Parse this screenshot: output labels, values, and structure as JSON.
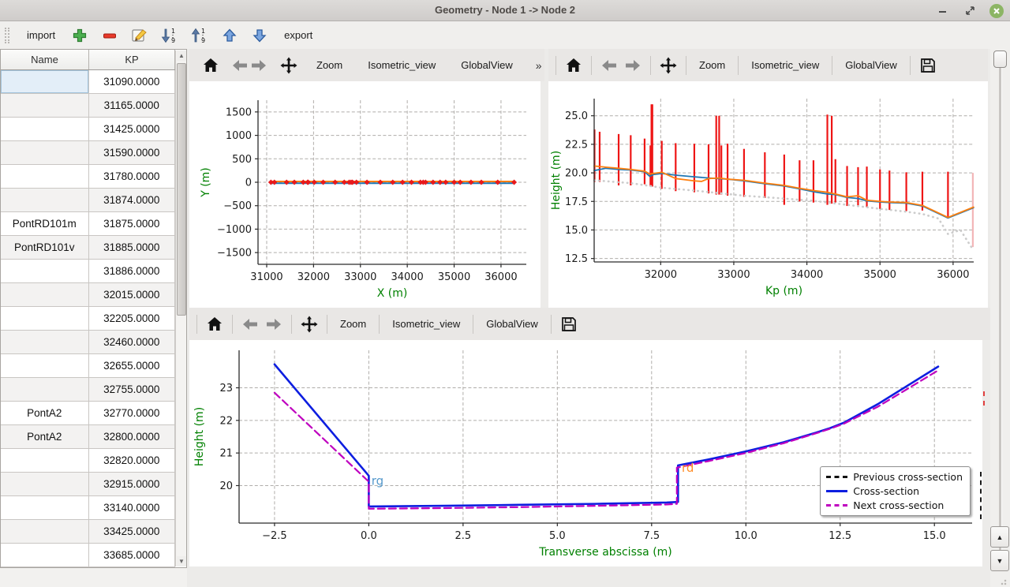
{
  "window": {
    "title": "Geometry - Node 1 -> Node 2"
  },
  "main_toolbar": {
    "import_label": "import",
    "export_label": "export",
    "icons": [
      "add",
      "remove",
      "edit",
      "sort-descending",
      "sort-ascending",
      "move-up",
      "move-down"
    ]
  },
  "plot_toolbar": {
    "zoom_label": "Zoom",
    "isometric_label": "Isometric_view",
    "globalview_label": "GlobalView",
    "overflow_label": "»",
    "icons": [
      "home",
      "back",
      "forward",
      "pan",
      "save"
    ]
  },
  "table": {
    "columns": [
      "Name",
      "KP"
    ],
    "selected": {
      "row": 0,
      "col": 0
    },
    "rows": [
      {
        "name": "",
        "kp": "31090.0000"
      },
      {
        "name": "",
        "kp": "31165.0000"
      },
      {
        "name": "",
        "kp": "31425.0000"
      },
      {
        "name": "",
        "kp": "31590.0000"
      },
      {
        "name": "",
        "kp": "31780.0000"
      },
      {
        "name": "",
        "kp": "31874.0000"
      },
      {
        "name": "PontRD101m",
        "kp": "31875.0000"
      },
      {
        "name": "PontRD101v",
        "kp": "31885.0000"
      },
      {
        "name": "",
        "kp": "31886.0000"
      },
      {
        "name": "",
        "kp": "32015.0000"
      },
      {
        "name": "",
        "kp": "32205.0000"
      },
      {
        "name": "",
        "kp": "32460.0000"
      },
      {
        "name": "",
        "kp": "32655.0000"
      },
      {
        "name": "",
        "kp": "32755.0000"
      },
      {
        "name": "PontA2",
        "kp": "32770.0000"
      },
      {
        "name": "PontA2",
        "kp": "32800.0000"
      },
      {
        "name": "",
        "kp": "32820.0000"
      },
      {
        "name": "",
        "kp": "32915.0000"
      },
      {
        "name": "",
        "kp": "33140.0000"
      },
      {
        "name": "",
        "kp": "33425.0000"
      },
      {
        "name": "",
        "kp": "33685.0000"
      }
    ]
  },
  "chart_data": [
    {
      "type": "line",
      "title": "",
      "xlabel": "X (m)",
      "ylabel": "Y (m)",
      "xlim": [
        30815,
        36540
      ],
      "ylim": [
        -1750,
        1750
      ],
      "grid": true,
      "xticks": {
        "values": [
          31000,
          32000,
          33000,
          34000,
          35000,
          36000
        ],
        "labels": [
          "31000",
          "32000",
          "33000",
          "34000",
          "35000",
          "36000"
        ]
      },
      "yticks": {
        "values": [
          1500,
          1000,
          500,
          0,
          -500,
          -1000,
          -1500
        ],
        "labels": [
          "1500",
          "1000",
          "500",
          "0",
          "−500",
          "−1000",
          "−1500"
        ]
      },
      "series": [
        {
          "name": "axis-line-blue",
          "color": "#1f77b4",
          "width": 2,
          "dash": "",
          "points": [
            [
              31090,
              -22
            ],
            [
              36290,
              -22
            ]
          ]
        },
        {
          "name": "axis-line-orange",
          "color": "#ff7f0e",
          "width": 2,
          "dash": "",
          "points": [
            [
              31090,
              16
            ],
            [
              36290,
              16
            ]
          ]
        }
      ],
      "markers": {
        "color": "#e8191c",
        "size": 3.5,
        "y": 0,
        "x": [
          31090,
          31165,
          31425,
          31590,
          31780,
          31874,
          31885,
          32015,
          32205,
          32460,
          32655,
          32760,
          32800,
          32830,
          32915,
          33140,
          33425,
          33690,
          33900,
          34090,
          34280,
          34340,
          34390,
          34550,
          34700,
          34820,
          35000,
          35130,
          35360,
          35580,
          35930,
          36280
        ]
      }
    },
    {
      "type": "line",
      "title": "",
      "xlabel": "Kp (m)",
      "ylabel": "Height (m)",
      "xlim": [
        31090,
        36282
      ],
      "ylim": [
        12.2,
        26.5
      ],
      "grid": true,
      "xticks": {
        "values": [
          32000,
          33000,
          34000,
          35000,
          36000
        ],
        "labels": [
          "32000",
          "33000",
          "34000",
          "35000",
          "36000"
        ]
      },
      "yticks": {
        "values": [
          12.5,
          15.0,
          17.5,
          20.0,
          22.5,
          25.0
        ],
        "labels": [
          "12.5",
          "15.0",
          "17.5",
          "20.0",
          "22.5",
          "25.0"
        ]
      },
      "vlines": [
        {
          "x": 31095,
          "y0": 19.2,
          "y1": 23.8
        },
        {
          "x": 31165,
          "y0": 19.2,
          "y1": 23.6
        },
        {
          "x": 31425,
          "y0": 18.9,
          "y1": 23.4
        },
        {
          "x": 31590,
          "y0": 18.9,
          "y1": 23.3
        },
        {
          "x": 31780,
          "y0": 19.0,
          "y1": 23.0
        },
        {
          "x": 31860,
          "y0": 18.8,
          "y1": 22.4
        },
        {
          "x": 31874,
          "y0": 18.8,
          "y1": 26.0
        },
        {
          "x": 31886,
          "y0": 18.8,
          "y1": 26.0
        },
        {
          "x": 32015,
          "y0": 18.6,
          "y1": 22.8
        },
        {
          "x": 32205,
          "y0": 18.4,
          "y1": 22.6
        },
        {
          "x": 32460,
          "y0": 18.3,
          "y1": 22.55
        },
        {
          "x": 32655,
          "y0": 18.2,
          "y1": 22.5
        },
        {
          "x": 32760,
          "y0": 18.1,
          "y1": 25.0
        },
        {
          "x": 32800,
          "y0": 18.1,
          "y1": 25.0
        },
        {
          "x": 32830,
          "y0": 18.1,
          "y1": 22.4
        },
        {
          "x": 32915,
          "y0": 18.0,
          "y1": 22.55
        },
        {
          "x": 33140,
          "y0": 17.9,
          "y1": 22.1
        },
        {
          "x": 33425,
          "y0": 17.8,
          "y1": 21.8
        },
        {
          "x": 33690,
          "y0": 17.2,
          "y1": 21.6
        },
        {
          "x": 33900,
          "y0": 17.5,
          "y1": 21.1
        },
        {
          "x": 34090,
          "y0": 17.4,
          "y1": 21.1
        },
        {
          "x": 34280,
          "y0": 17.2,
          "y1": 25.1
        },
        {
          "x": 34340,
          "y0": 17.3,
          "y1": 25.0
        },
        {
          "x": 34390,
          "y0": 17.4,
          "y1": 21.2
        },
        {
          "x": 34550,
          "y0": 17.1,
          "y1": 20.6
        },
        {
          "x": 34700,
          "y0": 17.15,
          "y1": 20.5
        },
        {
          "x": 34820,
          "y0": 17.0,
          "y1": 20.55
        },
        {
          "x": 35000,
          "y0": 16.85,
          "y1": 20.3
        },
        {
          "x": 35130,
          "y0": 16.75,
          "y1": 20.2
        },
        {
          "x": 35360,
          "y0": 16.65,
          "y1": 20.05
        },
        {
          "x": 35580,
          "y0": 16.7,
          "y1": 20.1
        },
        {
          "x": 35930,
          "y0": 16.0,
          "y1": 20.1
        },
        {
          "x": 36270,
          "y0": 13.5,
          "y1": 20.0,
          "color": "#f3b6b8"
        }
      ],
      "series": [
        {
          "name": "left-bank-line",
          "color": "#1f77b4",
          "width": 1.8,
          "dash": "",
          "points": [
            [
              31090,
              20.2
            ],
            [
              31250,
              20.4
            ],
            [
              31425,
              20.3
            ],
            [
              31590,
              20.25
            ],
            [
              31780,
              20.1
            ],
            [
              31850,
              19.7
            ],
            [
              31900,
              19.85
            ],
            [
              32015,
              19.95
            ],
            [
              32205,
              19.8
            ],
            [
              32460,
              19.65
            ],
            [
              32655,
              19.55
            ],
            [
              32800,
              19.5
            ],
            [
              32915,
              19.45
            ],
            [
              33140,
              19.3
            ],
            [
              33425,
              19.05
            ],
            [
              33690,
              18.85
            ],
            [
              33900,
              18.6
            ],
            [
              34090,
              18.35
            ],
            [
              34280,
              18.15
            ],
            [
              34390,
              18.1
            ],
            [
              34550,
              17.85
            ],
            [
              34700,
              17.75
            ],
            [
              34820,
              17.55
            ],
            [
              35000,
              17.45
            ],
            [
              35130,
              17.4
            ],
            [
              35360,
              17.35
            ],
            [
              35580,
              17.1
            ],
            [
              35930,
              16.05
            ],
            [
              36280,
              16.95
            ]
          ]
        },
        {
          "name": "right-bank-line",
          "color": "#ff7f0e",
          "width": 1.8,
          "dash": "",
          "points": [
            [
              31090,
              20.6
            ],
            [
              31250,
              20.5
            ],
            [
              31425,
              20.4
            ],
            [
              31590,
              20.3
            ],
            [
              31780,
              20.15
            ],
            [
              31850,
              19.9
            ],
            [
              32015,
              20.05
            ],
            [
              32205,
              19.5
            ],
            [
              32460,
              19.3
            ],
            [
              32560,
              19.25
            ],
            [
              32655,
              19.5
            ],
            [
              32800,
              19.55
            ],
            [
              32915,
              19.45
            ],
            [
              33140,
              19.35
            ],
            [
              33425,
              19.1
            ],
            [
              33690,
              18.9
            ],
            [
              33900,
              18.65
            ],
            [
              34090,
              18.45
            ],
            [
              34280,
              18.3
            ],
            [
              34390,
              18.15
            ],
            [
              34550,
              17.9
            ],
            [
              34700,
              18.0
            ],
            [
              34820,
              17.6
            ],
            [
              35000,
              17.5
            ],
            [
              35130,
              17.45
            ],
            [
              35360,
              17.4
            ],
            [
              35580,
              17.15
            ],
            [
              35930,
              16.1
            ],
            [
              36280,
              17.0
            ]
          ]
        },
        {
          "name": "thalweg-dotted",
          "color": "#cccccc",
          "width": 2.6,
          "dash": "0.5 5.5",
          "points": [
            [
              31090,
              19.35
            ],
            [
              31590,
              19.1
            ],
            [
              32015,
              18.7
            ],
            [
              32460,
              18.45
            ],
            [
              32915,
              18.15
            ],
            [
              33140,
              18.0
            ],
            [
              33690,
              17.75
            ],
            [
              34090,
              17.55
            ],
            [
              34550,
              17.2
            ],
            [
              35000,
              16.85
            ],
            [
              35360,
              16.6
            ],
            [
              35580,
              16.4
            ],
            [
              35800,
              16.0
            ],
            [
              35930,
              14.65
            ],
            [
              36100,
              15.0
            ],
            [
              36280,
              13.2
            ]
          ]
        }
      ]
    },
    {
      "type": "line",
      "title": "",
      "xlabel": "Transverse abscissa (m)",
      "ylabel": "Height (m)",
      "xlim": [
        -3.44,
        16.0
      ],
      "ylim": [
        18.85,
        24.15
      ],
      "grid": true,
      "xticks": {
        "values": [
          -2.5,
          0,
          2.5,
          5,
          7.5,
          10,
          12.5,
          15
        ],
        "labels": [
          "−2.5",
          "0.0",
          "2.5",
          "5.0",
          "7.5",
          "10.0",
          "12.5",
          "15.0"
        ]
      },
      "yticks": {
        "values": [
          20,
          21,
          22,
          23
        ],
        "labels": [
          "20",
          "21",
          "22",
          "23"
        ]
      },
      "series": [
        {
          "name": "previous-cross-section",
          "color": "#111111",
          "width": 2.5,
          "dash": "9 5",
          "points": []
        },
        {
          "name": "cross-section",
          "color": "#0d1ee0",
          "width": 2.6,
          "dash": "",
          "points": [
            [
              -2.5,
              23.72
            ],
            [
              0,
              20.3
            ],
            [
              0,
              19.36
            ],
            [
              2,
              19.38
            ],
            [
              4,
              19.41
            ],
            [
              6,
              19.44
            ],
            [
              7.9,
              19.48
            ],
            [
              8.2,
              19.5
            ],
            [
              8.2,
              20.62
            ],
            [
              9,
              20.8
            ],
            [
              10,
              21.05
            ],
            [
              11,
              21.33
            ],
            [
              11.85,
              21.62
            ],
            [
              12.2,
              21.75
            ],
            [
              12.6,
              21.93
            ],
            [
              13.5,
              22.5
            ],
            [
              15.1,
              23.65
            ]
          ]
        },
        {
          "name": "next-cross-section",
          "color": "#bf00bf",
          "width": 2.2,
          "dash": "9 5",
          "points": [
            [
              -2.5,
              22.85
            ],
            [
              0,
              20.12
            ],
            [
              0,
              19.29
            ],
            [
              2,
              19.31
            ],
            [
              4,
              19.34
            ],
            [
              6,
              19.38
            ],
            [
              7.9,
              19.42
            ],
            [
              8.17,
              19.44
            ],
            [
              8.17,
              20.55
            ],
            [
              9,
              20.75
            ],
            [
              10,
              21.0
            ],
            [
              11,
              21.3
            ],
            [
              11.85,
              21.6
            ],
            [
              12.2,
              21.73
            ],
            [
              12.6,
              21.9
            ],
            [
              13.5,
              22.42
            ],
            [
              15.05,
              23.5
            ]
          ]
        }
      ],
      "annotations": [
        {
          "x": 0.07,
          "y": 20.02,
          "text": "rg",
          "color": "#5599cc"
        },
        {
          "x": 8.3,
          "y": 20.42,
          "text": "rd",
          "color": "#ff8c26"
        }
      ],
      "legend": {
        "position": "lower right",
        "entries": [
          {
            "label": "Previous cross-section",
            "color": "#111111",
            "dash": true
          },
          {
            "label": "Cross-section",
            "color": "#0d1ee0",
            "dash": false
          },
          {
            "label": "Next cross-section",
            "color": "#bf00bf",
            "dash": true
          }
        ]
      }
    }
  ]
}
